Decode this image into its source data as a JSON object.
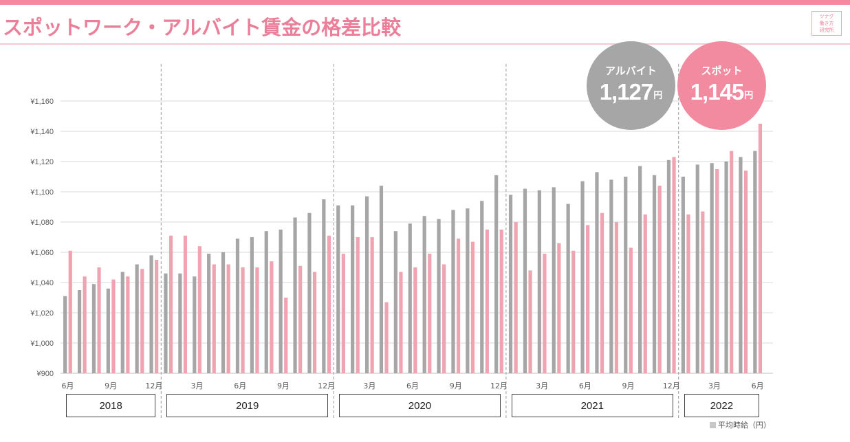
{
  "header": {
    "title": "スポットワーク・アルバイト賃金の格差比較",
    "logo_lines": [
      "ツナグ",
      "働き方",
      "研究所"
    ]
  },
  "colors": {
    "accent": "#f28aa0",
    "title": "#eb7f99",
    "rule": "#f7c9d3",
    "arubaito": "#a6a6a6",
    "spot": "#f0a3b1",
    "grid": "#d9d9d9",
    "divider": "#9a9a9a",
    "axis_text": "#595959",
    "callout_gray": "#a6a6a6",
    "callout_pink": "#f28aa0"
  },
  "callouts": [
    {
      "label": "アルバイト",
      "value": "1,127",
      "unit": "円"
    },
    {
      "label": "スポット",
      "value": "1,145",
      "unit": "円"
    }
  ],
  "legend": {
    "label": "平均時給（円）"
  },
  "chart_data": {
    "type": "bar",
    "ylim": [
      900,
      1160
    ],
    "ytick_values": [
      900,
      1000,
      1020,
      1040,
      1060,
      1080,
      1100,
      1120,
      1140,
      1160
    ],
    "ytick_labels": [
      "¥900",
      "¥1,000",
      "¥1,020",
      "¥1,040",
      "¥1,060",
      "¥1,080",
      "¥1,100",
      "¥1,120",
      "¥1,140",
      "¥1,160"
    ],
    "grid": true,
    "xtick_labels": [
      {
        "index": 0,
        "label": "6月"
      },
      {
        "index": 3,
        "label": "9月"
      },
      {
        "index": 6,
        "label": "12月"
      },
      {
        "index": 9,
        "label": "3月"
      },
      {
        "index": 12,
        "label": "6月"
      },
      {
        "index": 15,
        "label": "9月"
      },
      {
        "index": 18,
        "label": "12月"
      },
      {
        "index": 21,
        "label": "3月"
      },
      {
        "index": 24,
        "label": "6月"
      },
      {
        "index": 27,
        "label": "9月"
      },
      {
        "index": 30,
        "label": "12月"
      },
      {
        "index": 33,
        "label": "3月"
      },
      {
        "index": 36,
        "label": "6月"
      },
      {
        "index": 39,
        "label": "9月"
      },
      {
        "index": 42,
        "label": "12月"
      },
      {
        "index": 45,
        "label": "3月"
      },
      {
        "index": 48,
        "label": "6月"
      }
    ],
    "years": [
      {
        "label": "2018",
        "first": 0,
        "last": 6
      },
      {
        "label": "2019",
        "first": 7,
        "last": 18
      },
      {
        "label": "2020",
        "first": 19,
        "last": 30
      },
      {
        "label": "2021",
        "first": 31,
        "last": 42
      },
      {
        "label": "2022",
        "first": 43,
        "last": 48
      }
    ],
    "year_dividers": [
      6.5,
      18.5,
      30.5,
      42.5
    ],
    "series": [
      {
        "key": "arubaito",
        "values": [
          1031,
          1035,
          1039,
          1036,
          1047,
          1052,
          1058,
          1046,
          1046,
          1044,
          1059,
          1060,
          1069,
          1070,
          1074,
          1075,
          1083,
          1086,
          1095,
          1091,
          1091,
          1097,
          1104,
          1074,
          1079,
          1084,
          1082,
          1088,
          1089,
          1094,
          1111,
          1098,
          1102,
          1101,
          1103,
          1092,
          1107,
          1113,
          1108,
          1110,
          1117,
          1111,
          1121,
          1110,
          1118,
          1119,
          1120,
          1123,
          1127
        ]
      },
      {
        "key": "spot",
        "values": [
          1061,
          1044,
          1050,
          1042,
          1044,
          1049,
          1055,
          1071,
          1071,
          1064,
          1052,
          1052,
          1050,
          1050,
          1054,
          1030,
          1051,
          1047,
          1071,
          1059,
          1070,
          1070,
          1027,
          1047,
          1050,
          1059,
          1052,
          1069,
          1067,
          1075,
          1075,
          1080,
          1048,
          1059,
          1066,
          1061,
          1078,
          1086,
          1080,
          1063,
          1085,
          1104,
          1123,
          1085,
          1087,
          1115,
          1127,
          1114,
          1145
        ]
      }
    ]
  }
}
